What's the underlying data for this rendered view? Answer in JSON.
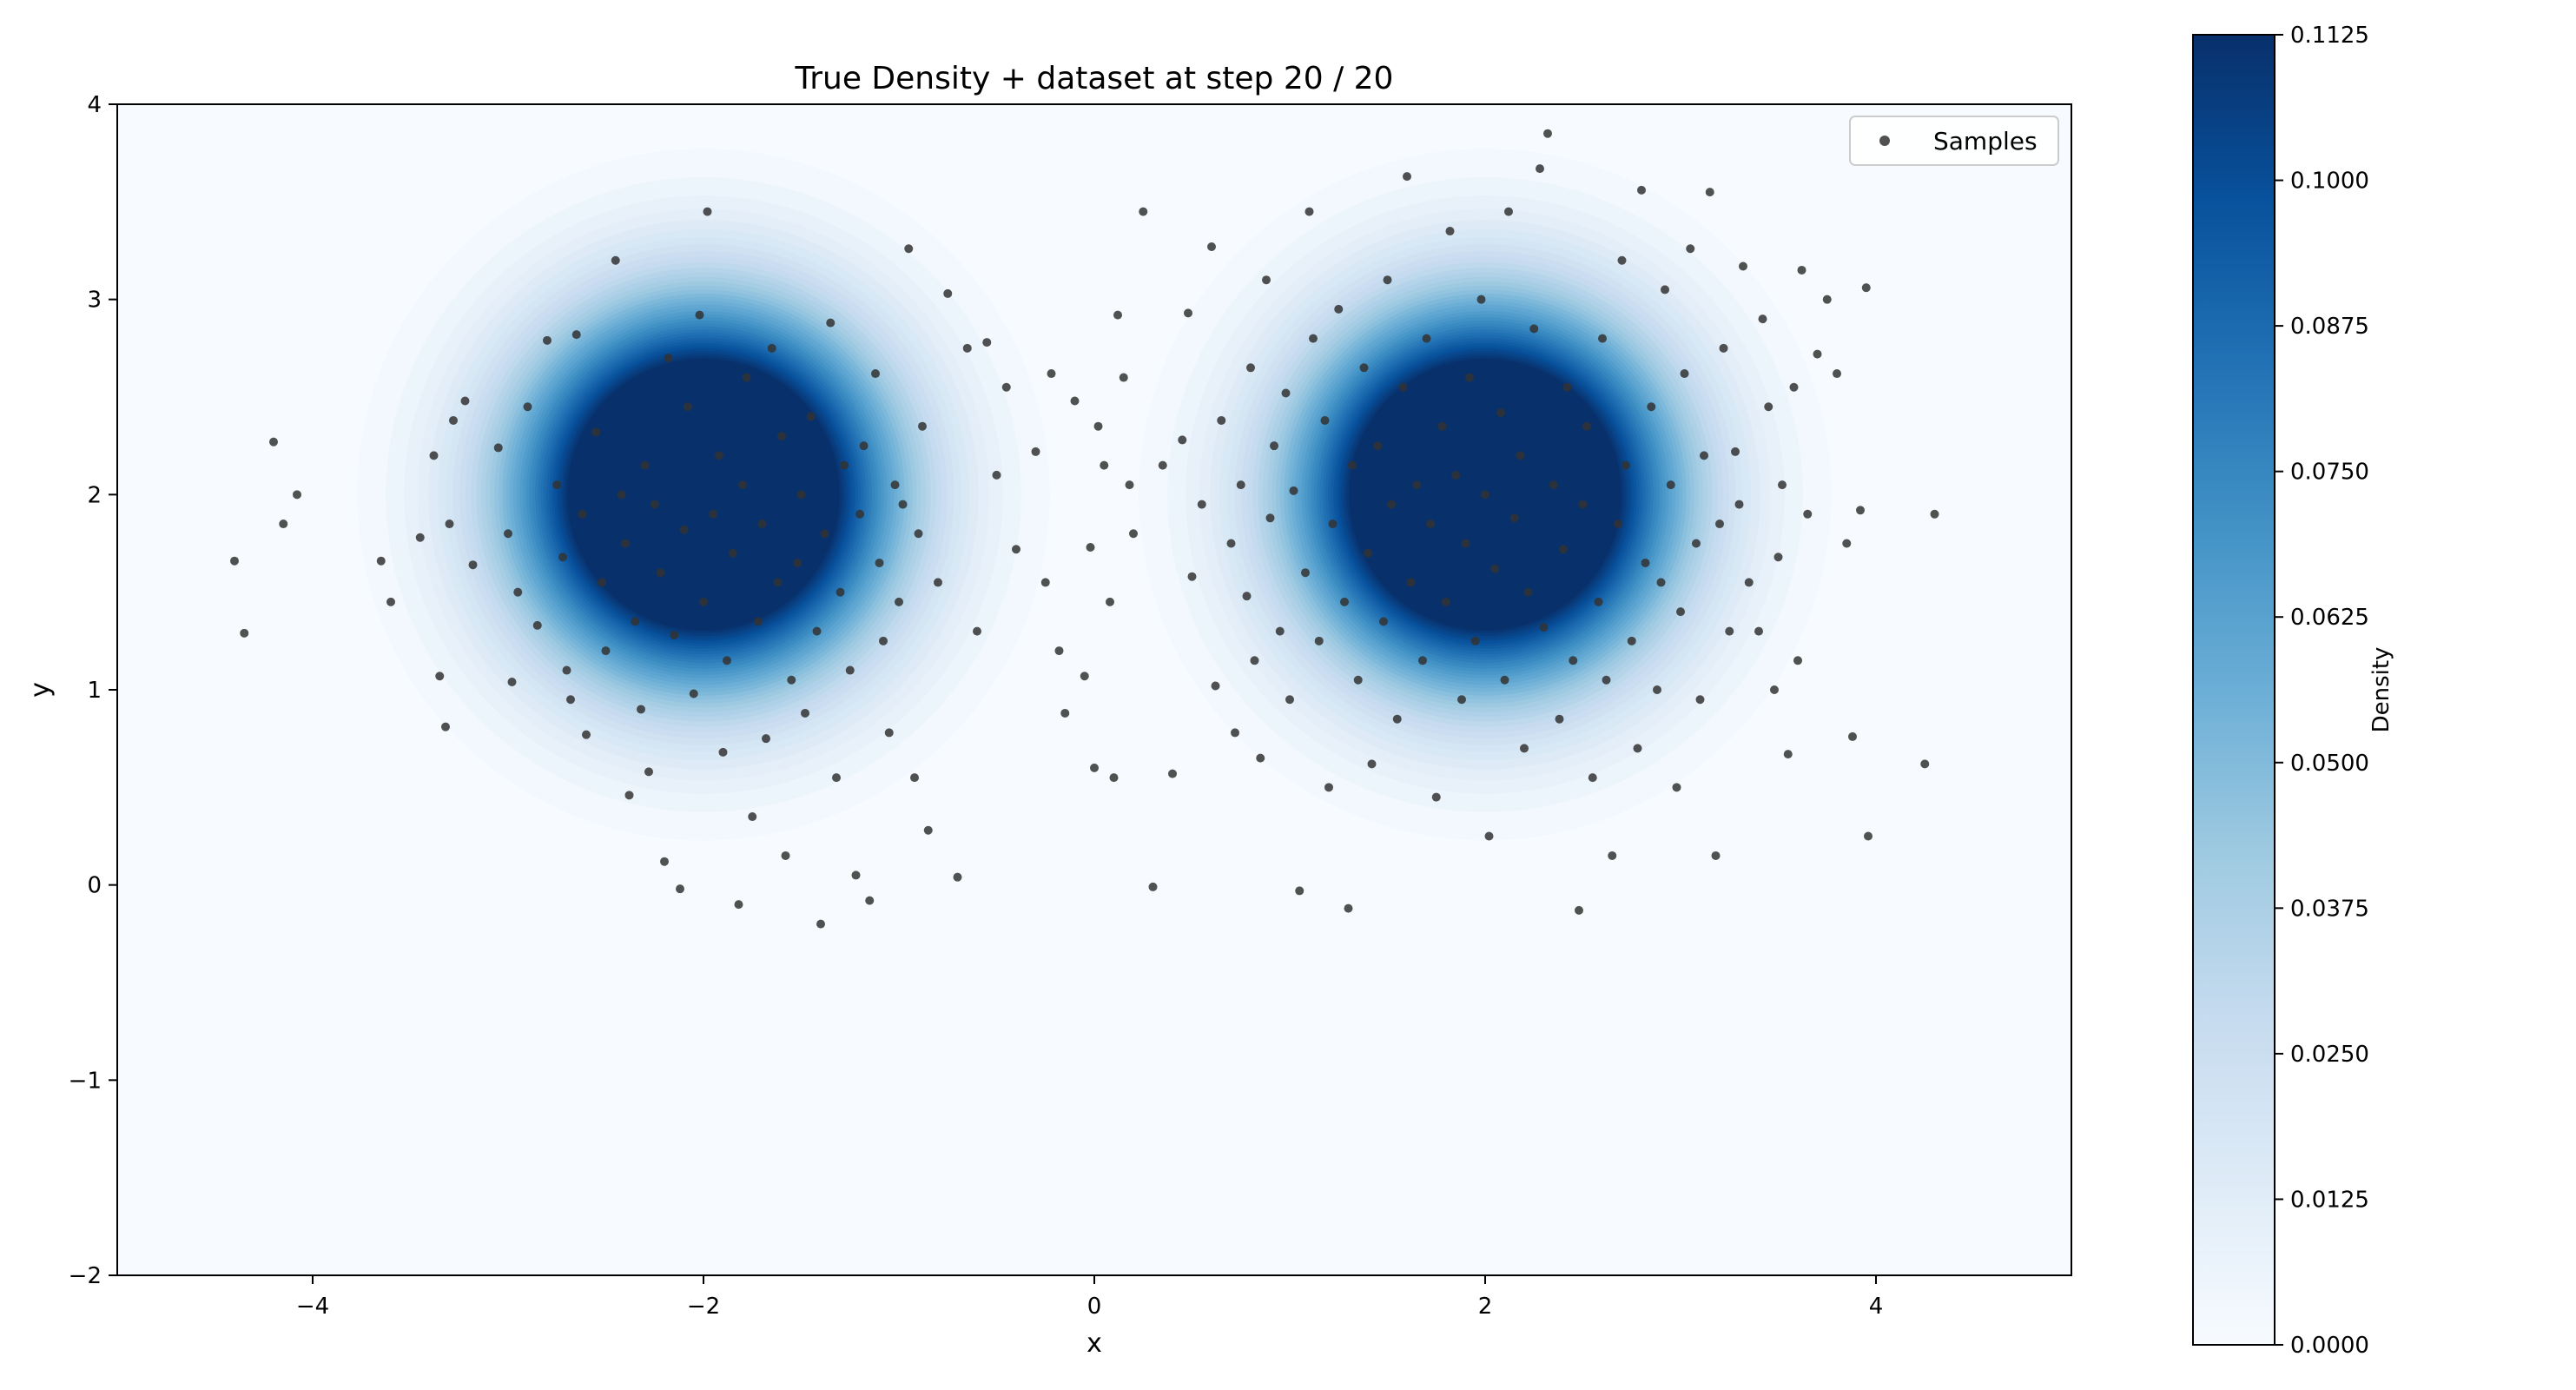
{
  "chart_data": {
    "type": "scatter",
    "title": "True Density + dataset at step 20 / 20",
    "xlabel": "x",
    "ylabel": "y",
    "xlim": [
      -5,
      5
    ],
    "ylim": [
      -2,
      4
    ],
    "xticks": [
      -4,
      -2,
      0,
      2,
      4
    ],
    "xtick_labels": [
      "−4",
      "−2",
      "0",
      "2",
      "4"
    ],
    "yticks": [
      -2,
      -1,
      0,
      1,
      2,
      3,
      4
    ],
    "ytick_labels": [
      "−2",
      "−1",
      "0",
      "1",
      "2",
      "3",
      "4"
    ],
    "grid": false,
    "legend": {
      "position": "top-right",
      "entries": [
        "Samples"
      ]
    },
    "density": {
      "type": "contourf",
      "colormap": "Blues",
      "components": [
        {
          "mean": [
            -2,
            2
          ],
          "std": 0.6
        },
        {
          "mean": [
            2,
            2
          ],
          "std": 0.6
        }
      ]
    },
    "colorbar": {
      "label": "Density",
      "range": [
        0,
        0.1125
      ],
      "ticks": [
        0,
        0.0125,
        0.025,
        0.0375,
        0.05,
        0.0625,
        0.075,
        0.0875,
        0.1,
        0.1125
      ],
      "tick_labels": [
        "0.0000",
        "0.0125",
        "0.0250",
        "0.0375",
        "0.0500",
        "0.0625",
        "0.0750",
        "0.0875",
        "0.1000",
        "0.1125"
      ]
    },
    "series": [
      {
        "name": "Samples",
        "color": "#333333",
        "points": [
          [
            -4.4,
            1.66
          ],
          [
            -4.35,
            1.29
          ],
          [
            -4.2,
            2.27
          ],
          [
            -4.15,
            1.85
          ],
          [
            -4.08,
            2.0
          ],
          [
            -3.65,
            1.66
          ],
          [
            -3.6,
            1.45
          ],
          [
            -3.45,
            1.78
          ],
          [
            -3.38,
            2.2
          ],
          [
            -3.35,
            1.07
          ],
          [
            -3.32,
            0.81
          ],
          [
            -3.3,
            1.85
          ],
          [
            -3.28,
            2.38
          ],
          [
            -3.22,
            2.48
          ],
          [
            -3.18,
            1.64
          ],
          [
            -3.05,
            2.24
          ],
          [
            -3.0,
            1.8
          ],
          [
            -2.98,
            1.04
          ],
          [
            -2.95,
            1.5
          ],
          [
            -2.9,
            2.45
          ],
          [
            -2.85,
            1.33
          ],
          [
            -2.8,
            2.79
          ],
          [
            -2.75,
            2.05
          ],
          [
            -2.72,
            1.68
          ],
          [
            -2.7,
            1.1
          ],
          [
            -2.68,
            0.95
          ],
          [
            -2.65,
            2.82
          ],
          [
            -2.62,
            1.9
          ],
          [
            -2.6,
            0.77
          ],
          [
            -2.55,
            2.32
          ],
          [
            -2.52,
            1.55
          ],
          [
            -2.5,
            1.2
          ],
          [
            -2.45,
            3.2
          ],
          [
            -2.42,
            2.0
          ],
          [
            -2.4,
            1.75
          ],
          [
            -2.38,
            0.46
          ],
          [
            -2.35,
            1.35
          ],
          [
            -2.32,
            0.9
          ],
          [
            -2.3,
            2.15
          ],
          [
            -2.28,
            0.58
          ],
          [
            -2.25,
            1.95
          ],
          [
            -2.22,
            1.6
          ],
          [
            -2.2,
            0.12
          ],
          [
            -2.18,
            2.7
          ],
          [
            -2.15,
            1.28
          ],
          [
            -2.12,
            -0.02
          ],
          [
            -2.1,
            1.82
          ],
          [
            -2.08,
            2.45
          ],
          [
            -2.05,
            0.98
          ],
          [
            -2.02,
            2.92
          ],
          [
            -2.0,
            1.45
          ],
          [
            -1.98,
            3.45
          ],
          [
            -1.95,
            1.9
          ],
          [
            -1.92,
            2.2
          ],
          [
            -1.9,
            0.68
          ],
          [
            -1.88,
            1.15
          ],
          [
            -1.85,
            1.7
          ],
          [
            -1.82,
            -0.1
          ],
          [
            -1.8,
            2.05
          ],
          [
            -1.78,
            2.6
          ],
          [
            -1.75,
            0.35
          ],
          [
            -1.72,
            1.35
          ],
          [
            -1.7,
            1.85
          ],
          [
            -1.68,
            0.75
          ],
          [
            -1.65,
            2.75
          ],
          [
            -1.62,
            1.55
          ],
          [
            -1.6,
            2.3
          ],
          [
            -1.58,
            0.15
          ],
          [
            -1.55,
            1.05
          ],
          [
            -1.52,
            1.65
          ],
          [
            -1.5,
            2.0
          ],
          [
            -1.48,
            0.88
          ],
          [
            -1.45,
            2.4
          ],
          [
            -1.42,
            1.3
          ],
          [
            -1.4,
            -0.2
          ],
          [
            -1.38,
            1.8
          ],
          [
            -1.35,
            2.88
          ],
          [
            -1.32,
            0.55
          ],
          [
            -1.3,
            1.5
          ],
          [
            -1.28,
            2.15
          ],
          [
            -1.25,
            1.1
          ],
          [
            -1.22,
            0.05
          ],
          [
            -1.2,
            1.9
          ],
          [
            -1.18,
            2.25
          ],
          [
            -1.15,
            -0.08
          ],
          [
            -1.12,
            2.62
          ],
          [
            -1.1,
            1.65
          ],
          [
            -1.08,
            1.25
          ],
          [
            -1.05,
            0.78
          ],
          [
            -1.02,
            2.05
          ],
          [
            -1.0,
            1.45
          ],
          [
            -0.98,
            1.95
          ],
          [
            -0.95,
            3.26
          ],
          [
            -0.92,
            0.55
          ],
          [
            -0.9,
            1.8
          ],
          [
            -0.88,
            2.35
          ],
          [
            -0.85,
            0.28
          ],
          [
            -0.8,
            1.55
          ],
          [
            -0.75,
            3.03
          ],
          [
            -0.7,
            0.04
          ],
          [
            -0.65,
            2.75
          ],
          [
            -0.6,
            1.3
          ],
          [
            -0.55,
            2.78
          ],
          [
            -0.5,
            2.1
          ],
          [
            -0.45,
            2.55
          ],
          [
            -0.4,
            1.72
          ],
          [
            -0.3,
            2.22
          ],
          [
            -0.25,
            1.55
          ],
          [
            -0.22,
            2.62
          ],
          [
            -0.18,
            1.2
          ],
          [
            -0.15,
            0.88
          ],
          [
            -0.1,
            2.48
          ],
          [
            -0.05,
            1.07
          ],
          [
            -0.02,
            1.73
          ],
          [
            0.0,
            0.6
          ],
          [
            0.02,
            2.35
          ],
          [
            0.05,
            2.15
          ],
          [
            0.08,
            1.45
          ],
          [
            0.1,
            0.55
          ],
          [
            0.12,
            2.92
          ],
          [
            0.15,
            2.6
          ],
          [
            0.18,
            2.05
          ],
          [
            0.2,
            1.8
          ],
          [
            0.25,
            3.45
          ],
          [
            0.3,
            -0.01
          ],
          [
            0.35,
            2.15
          ],
          [
            0.4,
            0.57
          ],
          [
            0.45,
            2.28
          ],
          [
            0.48,
            2.93
          ],
          [
            0.5,
            1.58
          ],
          [
            0.55,
            1.95
          ],
          [
            0.6,
            3.27
          ],
          [
            0.62,
            1.02
          ],
          [
            0.65,
            2.38
          ],
          [
            0.7,
            1.75
          ],
          [
            0.72,
            0.78
          ],
          [
            0.75,
            2.05
          ],
          [
            0.78,
            1.48
          ],
          [
            0.8,
            2.65
          ],
          [
            0.82,
            1.15
          ],
          [
            0.85,
            0.65
          ],
          [
            0.88,
            3.1
          ],
          [
            0.9,
            1.88
          ],
          [
            0.92,
            2.25
          ],
          [
            0.95,
            1.3
          ],
          [
            0.98,
            2.52
          ],
          [
            1.0,
            0.95
          ],
          [
            1.02,
            2.02
          ],
          [
            1.05,
            -0.03
          ],
          [
            1.08,
            1.6
          ],
          [
            1.1,
            3.45
          ],
          [
            1.12,
            2.8
          ],
          [
            1.15,
            1.25
          ],
          [
            1.18,
            2.38
          ],
          [
            1.2,
            0.5
          ],
          [
            1.22,
            1.85
          ],
          [
            1.25,
            2.95
          ],
          [
            1.28,
            1.45
          ],
          [
            1.3,
            -0.12
          ],
          [
            1.32,
            2.15
          ],
          [
            1.35,
            1.05
          ],
          [
            1.38,
            2.65
          ],
          [
            1.4,
            1.7
          ],
          [
            1.42,
            0.62
          ],
          [
            1.45,
            2.25
          ],
          [
            1.48,
            1.35
          ],
          [
            1.5,
            3.1
          ],
          [
            1.52,
            1.95
          ],
          [
            1.55,
            0.85
          ],
          [
            1.58,
            2.55
          ],
          [
            1.6,
            3.63
          ],
          [
            1.62,
            1.55
          ],
          [
            1.65,
            2.05
          ],
          [
            1.68,
            1.15
          ],
          [
            1.7,
            2.8
          ],
          [
            1.72,
            1.85
          ],
          [
            1.75,
            0.45
          ],
          [
            1.78,
            2.35
          ],
          [
            1.8,
            1.45
          ],
          [
            1.82,
            3.35
          ],
          [
            1.85,
            2.1
          ],
          [
            1.88,
            0.95
          ],
          [
            1.9,
            1.75
          ],
          [
            1.92,
            2.6
          ],
          [
            1.95,
            1.25
          ],
          [
            1.98,
            3.0
          ],
          [
            2.0,
            2.0
          ],
          [
            2.02,
            0.25
          ],
          [
            2.05,
            1.62
          ],
          [
            2.08,
            2.42
          ],
          [
            2.1,
            1.05
          ],
          [
            2.12,
            3.45
          ],
          [
            2.15,
            1.88
          ],
          [
            2.18,
            2.2
          ],
          [
            2.2,
            0.7
          ],
          [
            2.22,
            1.5
          ],
          [
            2.25,
            2.85
          ],
          [
            2.28,
            3.67
          ],
          [
            2.3,
            1.32
          ],
          [
            2.32,
            3.85
          ],
          [
            2.35,
            2.05
          ],
          [
            2.38,
            0.85
          ],
          [
            2.4,
            1.72
          ],
          [
            2.42,
            2.55
          ],
          [
            2.45,
            1.15
          ],
          [
            2.48,
            -0.13
          ],
          [
            2.5,
            1.95
          ],
          [
            2.52,
            2.35
          ],
          [
            2.55,
            0.55
          ],
          [
            2.58,
            1.45
          ],
          [
            2.6,
            2.8
          ],
          [
            2.62,
            1.05
          ],
          [
            2.65,
            0.15
          ],
          [
            2.68,
            1.85
          ],
          [
            2.7,
            3.2
          ],
          [
            2.72,
            2.15
          ],
          [
            2.75,
            1.25
          ],
          [
            2.78,
            0.7
          ],
          [
            2.8,
            3.56
          ],
          [
            2.82,
            1.65
          ],
          [
            2.85,
            2.45
          ],
          [
            2.88,
            1.0
          ],
          [
            2.9,
            1.55
          ],
          [
            2.92,
            3.05
          ],
          [
            2.95,
            2.05
          ],
          [
            2.98,
            0.5
          ],
          [
            3.0,
            1.4
          ],
          [
            3.02,
            2.62
          ],
          [
            3.05,
            3.26
          ],
          [
            3.08,
            1.75
          ],
          [
            3.1,
            0.95
          ],
          [
            3.12,
            2.2
          ],
          [
            3.15,
            3.55
          ],
          [
            3.18,
            0.15
          ],
          [
            3.2,
            1.85
          ],
          [
            3.22,
            2.75
          ],
          [
            3.25,
            1.3
          ],
          [
            3.28,
            2.22
          ],
          [
            3.3,
            1.95
          ],
          [
            3.32,
            3.17
          ],
          [
            3.35,
            1.55
          ],
          [
            3.4,
            1.3
          ],
          [
            3.42,
            2.9
          ],
          [
            3.45,
            2.45
          ],
          [
            3.48,
            1.0
          ],
          [
            3.5,
            1.68
          ],
          [
            3.52,
            2.05
          ],
          [
            3.55,
            0.67
          ],
          [
            3.58,
            2.55
          ],
          [
            3.6,
            1.15
          ],
          [
            3.62,
            3.15
          ],
          [
            3.65,
            1.9
          ],
          [
            3.7,
            2.72
          ],
          [
            3.75,
            3.0
          ],
          [
            3.8,
            2.62
          ],
          [
            3.85,
            1.75
          ],
          [
            3.88,
            0.76
          ],
          [
            3.92,
            1.92
          ],
          [
            3.95,
            3.06
          ],
          [
            3.96,
            0.25
          ],
          [
            4.25,
            0.62
          ],
          [
            4.3,
            1.9
          ]
        ]
      }
    ]
  }
}
